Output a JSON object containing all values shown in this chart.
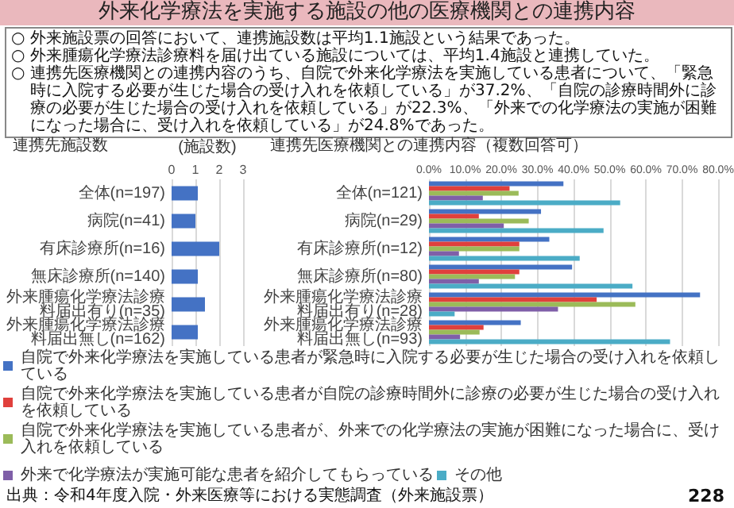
{
  "chart_data": [
    {
      "type": "other",
      "title": "外来化学療法を実施する施設の他の医療機関との連携内容",
      "annotations": [
        "○ 外来施設票の回答において、連携施設数は平均1.1施設という結果であった。",
        "○ 外来腫瘍化学療法診療料を届け出ている施設については、平均1.4施設と連携していた。",
        "○ 連携先医療機関との連携内容のうち、自院で外来化学療法を実施している患者について、「緊急時に入院する必要が生じた場合の受け入れを依頼している」が37.2%、「自院の診療時間外に診療の必要が生じた場合の受け入れを依頼している」が22.3%、「外来での化学療法の実施が困難になった場合に、受け入れを依頼している」が24.8%であった。",
        "出典：令和4年度入院・外来医療等における実態調査（外来施設票）",
        "228"
      ]
    },
    {
      "type": "bar",
      "orientation": "horizontal",
      "title": "連携先施設数",
      "xlabel": "(施設数)",
      "categories": [
        "全体(n=197)",
        "病院(n=41)",
        "有床診療所(n=16)",
        "無床診療所(n=140)",
        "外来腫瘍化学療法診療料届出有り(n=35)",
        "外来腫瘍化学療法診療料届出無し(n=162)"
      ],
      "values": [
        1.1,
        1.0,
        2.0,
        1.1,
        1.4,
        1.1
      ],
      "color": "#4472c4",
      "xlim": [
        0,
        3
      ],
      "xticks": [
        0,
        1,
        2,
        3
      ],
      "grid": "x"
    },
    {
      "type": "bar",
      "orientation": "horizontal",
      "title": "連携先医療機関との連携内容（複数回答可）",
      "categories": [
        "全体(n=121)",
        "病院(n=29)",
        "有床診療所(n=12)",
        "無床診療所(n=80)",
        "外来腫瘍化学療法診療料届出有り(n=28)",
        "外来腫瘍化学療法診療料届出無し(n=93)"
      ],
      "series": [
        {
          "name": "自院で外来化学療法を実施している患者が緊急時に入院する必要が生じた場合の受け入れを依頼している",
          "color": "#4472c4",
          "values": [
            37.2,
            31,
            33.3,
            39.6,
            75.0,
            25.4
          ]
        },
        {
          "name": "自院で外来化学療法を実施している患者が自院の診療時間外に診療の必要が生じた場合の受け入れを依頼している",
          "color": "#e0403c",
          "values": [
            22.3,
            13.8,
            25.0,
            25.0,
            46.4,
            15.1
          ]
        },
        {
          "name": "自院で外来化学療法を実施している患者が、外来での化学療法の実施が困難になった場合に、受け入れを依頼している",
          "color": "#9bbb59",
          "values": [
            24.8,
            27.6,
            25.0,
            23.8,
            57.1,
            14.0
          ]
        },
        {
          "name": "外来で化学療法が実施可能な患者を紹介してもらっている",
          "color": "#7f5fa8",
          "values": [
            14.9,
            20.7,
            8.3,
            13.8,
            35.7,
            8.6
          ]
        },
        {
          "name": "その他",
          "color": "#4bacc6",
          "values": [
            52.9,
            48.3,
            41.7,
            56.3,
            7.1,
            66.7
          ]
        }
      ],
      "xlim": [
        0,
        80
      ],
      "xticks": [
        {
          "value": 0,
          "label": "0.0%"
        },
        {
          "value": 10,
          "label": "10.0%"
        },
        {
          "value": 20,
          "label": "20.0%"
        },
        {
          "value": 30,
          "label": "30.0%"
        },
        {
          "value": 40,
          "label": "40.0%"
        },
        {
          "value": 50,
          "label": "50.0%"
        },
        {
          "value": 60,
          "label": "60.0%"
        },
        {
          "value": 70,
          "label": "70.0%"
        },
        {
          "value": 80,
          "label": "80.0%"
        }
      ],
      "grid": "x",
      "legend": "bottom"
    }
  ]
}
